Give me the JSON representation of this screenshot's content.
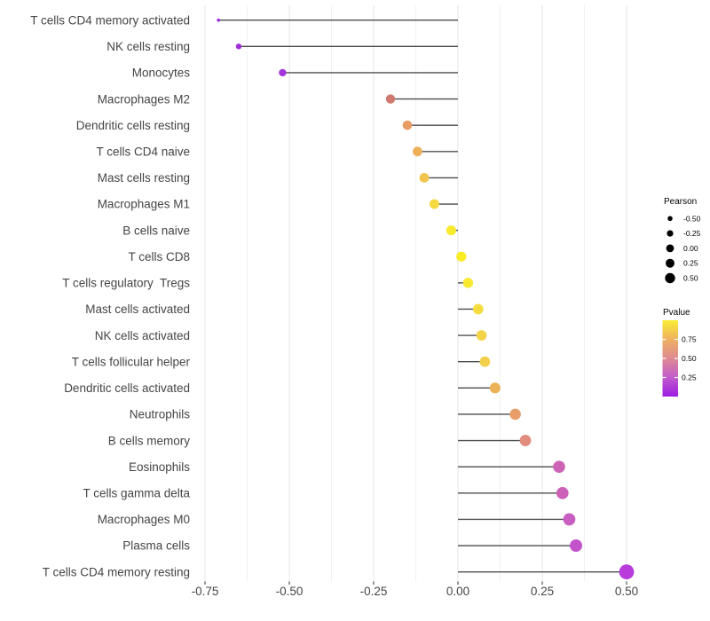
{
  "chart_data": {
    "type": "lollipop",
    "title": "",
    "xlabel": "",
    "ylabel": "",
    "x_axis": {
      "ticks": [
        -0.75,
        -0.5,
        -0.25,
        0,
        0.25,
        0.5
      ],
      "tick_labels": [
        "-0.75",
        "-0.50",
        "-0.25",
        "0.00",
        "0.25",
        "0.50"
      ],
      "range": [
        -0.78,
        0.565
      ],
      "minor_step": 0.125,
      "grid": true
    },
    "rows": [
      {
        "label": "T cells CD4 memory activated",
        "pearson": -0.71,
        "pvalue_approx": 0.03,
        "color": "#9629e0"
      },
      {
        "label": "NK cells resting",
        "pearson": -0.65,
        "pvalue_approx": 0.06,
        "color": "#9d2fd9"
      },
      {
        "label": "Monocytes",
        "pearson": -0.52,
        "pvalue_approx": 0.09,
        "color": "#a436dc"
      },
      {
        "label": "Macrophages M2",
        "pearson": -0.2,
        "pvalue_approx": 0.55,
        "color": "#d1786f"
      },
      {
        "label": "Dendritic cells resting",
        "pearson": -0.15,
        "pvalue_approx": 0.7,
        "color": "#e89b62"
      },
      {
        "label": "T cells CD4 naive",
        "pearson": -0.12,
        "pvalue_approx": 0.76,
        "color": "#edb058"
      },
      {
        "label": "Mast cells resting",
        "pearson": -0.1,
        "pvalue_approx": 0.82,
        "color": "#f2c64e"
      },
      {
        "label": "Macrophages M1",
        "pearson": -0.07,
        "pvalue_approx": 0.88,
        "color": "#f4d941"
      },
      {
        "label": "B cells naive",
        "pearson": -0.02,
        "pvalue_approx": 0.94,
        "color": "#f8ea2e"
      },
      {
        "label": "T cells CD8",
        "pearson": 0.01,
        "pvalue_approx": 0.95,
        "color": "#f9ec27"
      },
      {
        "label": "T cells regulatory  Tregs",
        "pearson": 0.03,
        "pvalue_approx": 0.93,
        "color": "#f8e930"
      },
      {
        "label": "Mast cells activated",
        "pearson": 0.06,
        "pvalue_approx": 0.87,
        "color": "#f5dc3e"
      },
      {
        "label": "NK cells activated",
        "pearson": 0.07,
        "pvalue_approx": 0.83,
        "color": "#f3d348"
      },
      {
        "label": "T cells follicular helper",
        "pearson": 0.08,
        "pvalue_approx": 0.82,
        "color": "#f3d04b"
      },
      {
        "label": "Dendritic cells activated",
        "pearson": 0.11,
        "pvalue_approx": 0.76,
        "color": "#edb156"
      },
      {
        "label": "Neutrophils",
        "pearson": 0.17,
        "pvalue_approx": 0.68,
        "color": "#e89e69"
      },
      {
        "label": "B cells memory",
        "pearson": 0.2,
        "pvalue_approx": 0.6,
        "color": "#e28c80"
      },
      {
        "label": "Eosinophils",
        "pearson": 0.3,
        "pvalue_approx": 0.33,
        "color": "#cd63b4"
      },
      {
        "label": "T cells gamma delta",
        "pearson": 0.31,
        "pvalue_approx": 0.32,
        "color": "#cd60b8"
      },
      {
        "label": "Macrophages M0",
        "pearson": 0.33,
        "pvalue_approx": 0.3,
        "color": "#c95ec2"
      },
      {
        "label": "Plasma cells",
        "pearson": 0.35,
        "pvalue_approx": 0.27,
        "color": "#c253cb"
      },
      {
        "label": "T cells CD4 memory resting",
        "pearson": 0.5,
        "pvalue_approx": 0.12,
        "color": "#b83cdc"
      }
    ],
    "legend": {
      "pearson": {
        "title": "Pearson",
        "entries": [
          {
            "label": "-0.50",
            "value": -0.5,
            "r": 2.8
          },
          {
            "label": "-0.25",
            "value": -0.25,
            "r": 3.6
          },
          {
            "label": "0.00",
            "value": 0.0,
            "r": 4.4
          },
          {
            "label": "0.25",
            "value": 0.25,
            "r": 5.0
          },
          {
            "label": "0.50",
            "value": 0.5,
            "r": 5.7
          }
        ],
        "swatch_color": "#000000"
      },
      "pvalue": {
        "title": "Pvalue",
        "tick_labels": [
          "0.75",
          "0.50",
          "0.25"
        ],
        "tick_values": [
          0.75,
          0.5,
          0.25
        ],
        "bar_range": [
          0.0,
          1.0
        ],
        "gradient_top_to_bottom": [
          "#f9ed34",
          "#eeb05f",
          "#dd8a93",
          "#c25ccd",
          "#9d1ce1"
        ]
      },
      "position": "right"
    },
    "colors": {
      "stick": "#4d4d4d",
      "grid_major": "#e4e4e4",
      "grid_minor": "#f1f1f1",
      "axis_text": "#454545",
      "tick_mark": "#333333",
      "legend_text": "#000000",
      "background": "#ffffff"
    }
  }
}
